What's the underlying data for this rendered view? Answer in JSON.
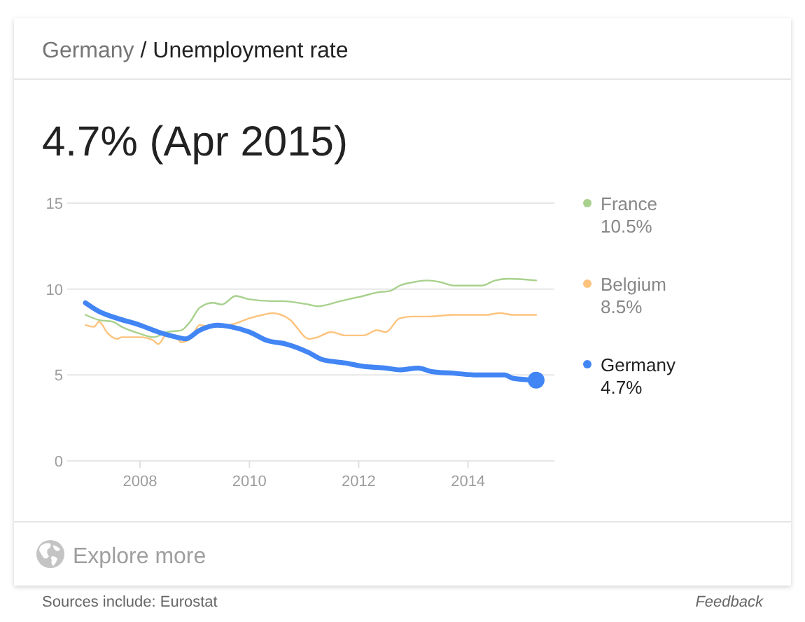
{
  "chart_data": {
    "type": "line",
    "title": "Germany / Unemployment rate",
    "subtitle": "4.7% (Apr 2015)",
    "annotations": [
      "10.5%",
      "8.5%",
      "4.7%",
      "Explore more",
      "Sources include: Eurostat",
      "Feedback"
    ],
    "xlim": [
      "2006-09",
      "2015-08"
    ],
    "xticks": [
      "2008",
      "2010",
      "2012",
      "2014"
    ],
    "ylim": [
      0,
      15
    ],
    "yticks": [
      0,
      5,
      10,
      15
    ],
    "grid": "y",
    "legend": "right",
    "line_style": "solid",
    "series": [
      {
        "name": "France",
        "color": "#a8d18d",
        "x": [
          "2007-01",
          "2007-04",
          "2007-07",
          "2007-09",
          "2008-01",
          "2008-04",
          "2008-07",
          "2008-10",
          "2008-12",
          "2009-02",
          "2009-05",
          "2009-07",
          "2009-10",
          "2010-01",
          "2010-06",
          "2010-08",
          "2011-02",
          "2011-04",
          "2011-09",
          "2012-02",
          "2012-05",
          "2012-08",
          "2012-10",
          "2013-01",
          "2013-04",
          "2013-07",
          "2013-10",
          "2014-04",
          "2014-07",
          "2014-10",
          "2015-04"
        ],
        "values": [
          8.5,
          8.2,
          8.1,
          7.8,
          7.4,
          7.2,
          7.5,
          7.6,
          8.1,
          8.9,
          9.2,
          9.1,
          9.6,
          9.4,
          9.3,
          9.3,
          9.1,
          9.0,
          9.3,
          9.6,
          9.8,
          9.9,
          10.2,
          10.4,
          10.5,
          10.4,
          10.2,
          10.2,
          10.5,
          10.6,
          10.5
        ]
      },
      {
        "name": "Belgium",
        "color": "#fdc37d",
        "x": [
          "2007-01",
          "2007-03",
          "2007-04",
          "2007-06",
          "2007-08",
          "2007-09",
          "2008-01",
          "2008-04",
          "2008-05",
          "2008-07",
          "2008-09",
          "2008-10",
          "2008-12",
          "2009-02",
          "2009-05",
          "2009-10",
          "2010-01",
          "2010-04",
          "2010-06",
          "2010-10",
          "2010-11",
          "2011-02",
          "2011-04",
          "2011-07",
          "2011-10",
          "2012-02",
          "2012-05",
          "2012-07",
          "2012-10",
          "2013-01",
          "2013-04",
          "2013-10",
          "2014-02",
          "2014-05",
          "2014-08",
          "2014-11",
          "2015-04"
        ],
        "values": [
          7.9,
          7.8,
          8.1,
          7.4,
          7.1,
          7.2,
          7.2,
          7.0,
          6.8,
          7.4,
          7.2,
          6.9,
          7.1,
          7.9,
          7.8,
          8.0,
          8.3,
          8.5,
          8.6,
          8.2,
          7.9,
          7.1,
          7.2,
          7.5,
          7.3,
          7.3,
          7.6,
          7.5,
          8.3,
          8.4,
          8.4,
          8.5,
          8.5,
          8.5,
          8.6,
          8.5,
          8.5
        ]
      },
      {
        "name": "Germany",
        "color": "#4285f4",
        "x": [
          "2007-01",
          "2007-04",
          "2007-08",
          "2008-01",
          "2008-05",
          "2008-09",
          "2008-11",
          "2009-02",
          "2009-06",
          "2009-09",
          "2010-01",
          "2010-05",
          "2010-09",
          "2011-02",
          "2011-05",
          "2011-10",
          "2012-02",
          "2012-07",
          "2012-10",
          "2013-02",
          "2013-05",
          "2013-10",
          "2014-03",
          "2014-09",
          "2014-11",
          "2015-04"
        ],
        "values": [
          9.2,
          8.7,
          8.3,
          7.9,
          7.5,
          7.2,
          7.1,
          7.6,
          7.9,
          7.8,
          7.5,
          7.0,
          6.8,
          6.3,
          5.9,
          5.7,
          5.5,
          5.4,
          5.3,
          5.4,
          5.2,
          5.1,
          5.0,
          5.0,
          4.8,
          4.7
        ]
      },
      {
        "type": "scatter",
        "color": "#4285f4",
        "marker": "circle",
        "x": [
          "2015-04"
        ],
        "values": [
          4.7
        ]
      }
    ]
  }
}
